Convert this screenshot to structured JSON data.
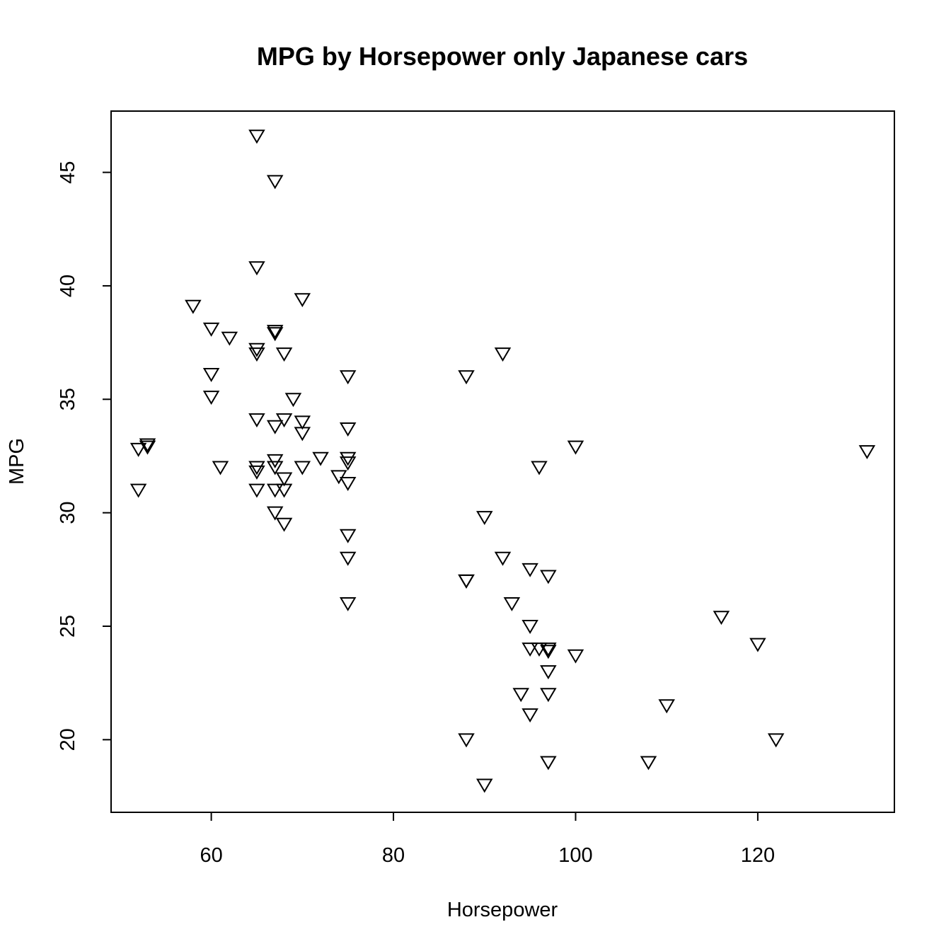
{
  "chart_data": {
    "type": "scatter",
    "title": "MPG by Horsepower only Japanese cars",
    "xlabel": "Horsepower",
    "ylabel": "MPG",
    "xlim": [
      49,
      135
    ],
    "ylim": [
      16.8,
      47.7
    ],
    "xticks": [
      60,
      80,
      100,
      120
    ],
    "yticks": [
      20,
      25,
      30,
      35,
      40,
      45
    ],
    "marker": "down-triangle",
    "grid": false,
    "legend": "none",
    "points": [
      {
        "x": 52,
        "y": 32.8
      },
      {
        "x": 52,
        "y": 31.0
      },
      {
        "x": 53,
        "y": 32.9
      },
      {
        "x": 53,
        "y": 33.0
      },
      {
        "x": 58,
        "y": 39.1
      },
      {
        "x": 60,
        "y": 38.1
      },
      {
        "x": 60,
        "y": 36.1
      },
      {
        "x": 60,
        "y": 35.1
      },
      {
        "x": 61,
        "y": 32.0
      },
      {
        "x": 62,
        "y": 37.7
      },
      {
        "x": 65,
        "y": 46.6
      },
      {
        "x": 65,
        "y": 40.8
      },
      {
        "x": 65,
        "y": 37.2
      },
      {
        "x": 65,
        "y": 37.0
      },
      {
        "x": 65,
        "y": 34.1
      },
      {
        "x": 65,
        "y": 32.0
      },
      {
        "x": 65,
        "y": 31.8
      },
      {
        "x": 65,
        "y": 31.0
      },
      {
        "x": 67,
        "y": 44.6
      },
      {
        "x": 67,
        "y": 38.0
      },
      {
        "x": 67,
        "y": 37.9
      },
      {
        "x": 67,
        "y": 33.8
      },
      {
        "x": 67,
        "y": 32.3
      },
      {
        "x": 67,
        "y": 32.0
      },
      {
        "x": 67,
        "y": 31.0
      },
      {
        "x": 67,
        "y": 30.0
      },
      {
        "x": 68,
        "y": 37.0
      },
      {
        "x": 68,
        "y": 34.1
      },
      {
        "x": 68,
        "y": 31.5
      },
      {
        "x": 68,
        "y": 31.0
      },
      {
        "x": 68,
        "y": 29.5
      },
      {
        "x": 69,
        "y": 35.0
      },
      {
        "x": 70,
        "y": 39.4
      },
      {
        "x": 70,
        "y": 34.0
      },
      {
        "x": 70,
        "y": 33.5
      },
      {
        "x": 70,
        "y": 32.0
      },
      {
        "x": 72,
        "y": 32.4
      },
      {
        "x": 74,
        "y": 31.6
      },
      {
        "x": 75,
        "y": 36.0
      },
      {
        "x": 75,
        "y": 33.7
      },
      {
        "x": 75,
        "y": 32.4
      },
      {
        "x": 75,
        "y": 32.2
      },
      {
        "x": 75,
        "y": 31.3
      },
      {
        "x": 75,
        "y": 29.0
      },
      {
        "x": 75,
        "y": 28.0
      },
      {
        "x": 75,
        "y": 26.0
      },
      {
        "x": 88,
        "y": 36.0
      },
      {
        "x": 88,
        "y": 27.0
      },
      {
        "x": 88,
        "y": 27.0
      },
      {
        "x": 88,
        "y": 20.0
      },
      {
        "x": 90,
        "y": 29.8
      },
      {
        "x": 90,
        "y": 18.0
      },
      {
        "x": 92,
        "y": 37.0
      },
      {
        "x": 92,
        "y": 28.0
      },
      {
        "x": 93,
        "y": 26.0
      },
      {
        "x": 94,
        "y": 22.0
      },
      {
        "x": 95,
        "y": 27.5
      },
      {
        "x": 95,
        "y": 25.0
      },
      {
        "x": 95,
        "y": 24.0
      },
      {
        "x": 95,
        "y": 21.1
      },
      {
        "x": 96,
        "y": 32.0
      },
      {
        "x": 96,
        "y": 24.0
      },
      {
        "x": 97,
        "y": 27.2
      },
      {
        "x": 97,
        "y": 24.0
      },
      {
        "x": 97,
        "y": 23.9
      },
      {
        "x": 97,
        "y": 23.0
      },
      {
        "x": 97,
        "y": 22.0
      },
      {
        "x": 97,
        "y": 19.0
      },
      {
        "x": 100,
        "y": 32.9
      },
      {
        "x": 100,
        "y": 23.7
      },
      {
        "x": 108,
        "y": 19.0
      },
      {
        "x": 110,
        "y": 21.5
      },
      {
        "x": 116,
        "y": 25.4
      },
      {
        "x": 120,
        "y": 24.2
      },
      {
        "x": 122,
        "y": 20.0
      },
      {
        "x": 132,
        "y": 32.7
      }
    ]
  }
}
